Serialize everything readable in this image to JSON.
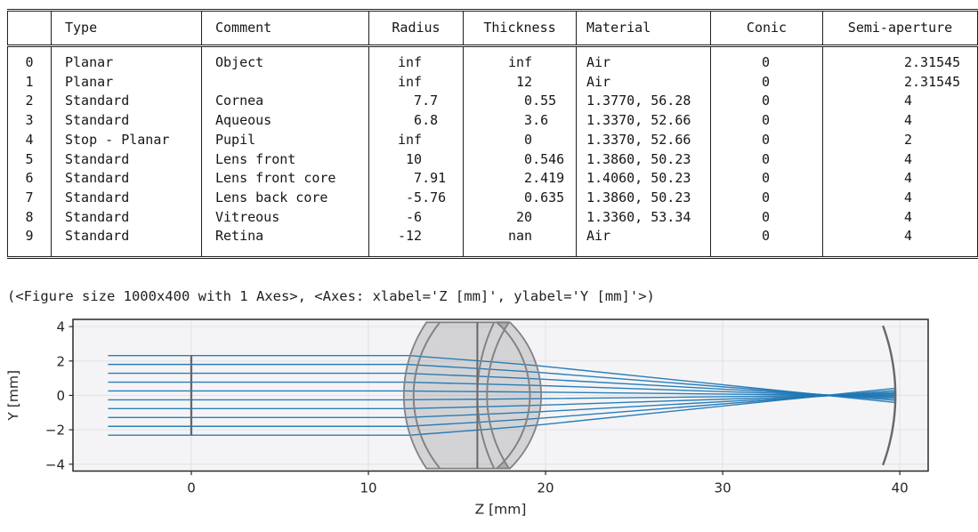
{
  "table": {
    "columns": [
      "",
      "Type",
      "Comment",
      "Radius",
      "Thickness",
      "Material",
      "Conic",
      "Semi-aperture"
    ],
    "rows": [
      [
        "0",
        "Planar",
        "Object",
        "inf",
        "inf",
        "Air",
        "0",
        "2.31545"
      ],
      [
        "1",
        "Planar",
        "",
        "inf",
        " 12",
        "Air",
        "0",
        "2.31545"
      ],
      [
        "2",
        "Standard",
        "Cornea",
        "  7.7",
        "  0.55",
        "1.3770, 56.28",
        "0",
        "4"
      ],
      [
        "3",
        "Standard",
        "Aqueous",
        "  6.8",
        "  3.6",
        "1.3370, 52.66",
        "0",
        "4"
      ],
      [
        "4",
        "Stop - Planar",
        "Pupil",
        "inf",
        "  0",
        "1.3370, 52.66",
        "0",
        "2"
      ],
      [
        "5",
        "Standard",
        "Lens front",
        " 10",
        "  0.546",
        "1.3860, 50.23",
        "0",
        "4"
      ],
      [
        "6",
        "Standard",
        "Lens front core",
        "  7.91",
        "  2.419",
        "1.4060, 50.23",
        "0",
        "4"
      ],
      [
        "7",
        "Standard",
        "Lens back core",
        " -5.76",
        "  0.635",
        "1.3860, 50.23",
        "0",
        "4"
      ],
      [
        "8",
        "Standard",
        "Vitreous",
        " -6",
        " 20",
        "1.3360, 53.34",
        "0",
        "4"
      ],
      [
        "9",
        "Standard",
        "Retina",
        "-12",
        "nan",
        "Air",
        "0",
        "4"
      ]
    ]
  },
  "output_text": "(<Figure size 1000x400 with 1 Axes>, <Axes: xlabel='Z [mm]', ylabel='Y [mm]'>)",
  "chart_data": {
    "type": "line",
    "title": "",
    "xlabel": "Z [mm]",
    "ylabel": "Y [mm]",
    "xlim": [
      -6.68,
      41.6
    ],
    "ylim": [
      -4.4,
      4.42
    ],
    "xticks": {
      "values": [
        0,
        10,
        20,
        30,
        40
      ],
      "labels": [
        "0",
        "10",
        "20",
        "30",
        "40"
      ]
    },
    "yticks": {
      "values": [
        -4,
        -2,
        0,
        2,
        4
      ],
      "labels": [
        "−4",
        "−2",
        "0",
        "2",
        "4"
      ]
    },
    "grid": true,
    "legend": "none",
    "colors": {
      "plot_bg": "#f4f4f6",
      "grid": "#e3e3e7",
      "spine": "#28282a",
      "ray": "#1f77b4",
      "surface_stroke": "#828284",
      "marker_stroke": "#67676a",
      "element_fill": "rgb(148,148,150)"
    },
    "rays": {
      "description": "10 parallel rays traced from object space through the eye model to the retina",
      "start_z": -4.7,
      "n_object": 1.0,
      "heights": [
        -2.3154,
        -1.8009,
        -1.2864,
        -0.7718,
        -0.2573,
        0.2573,
        0.7718,
        1.2864,
        1.8009,
        2.3154
      ]
    },
    "refracting_surfaces": [
      {
        "name": "cornea-front",
        "z": 12,
        "R": 7.7,
        "n_after": 1.377
      },
      {
        "name": "cornea-back",
        "z": 12.55,
        "R": 6.8,
        "n_after": 1.337
      },
      {
        "name": "lens-front",
        "z": 16.15,
        "R": 10,
        "n_after": 1.386
      },
      {
        "name": "lens-front-core",
        "z": 16.696,
        "R": 7.91,
        "n_after": 1.406
      },
      {
        "name": "lens-back-core",
        "z": 19.115,
        "R": -5.76,
        "n_after": 1.386
      },
      {
        "name": "lens-back",
        "z": 19.75,
        "R": -6,
        "n_after": 1.336
      }
    ],
    "elements": [
      {
        "name": "cornea",
        "front": {
          "z": 12,
          "R": 7.7
        },
        "back": {
          "z": 12.55,
          "R": 6.8
        }
      },
      {
        "name": "aqueous",
        "front": {
          "z": 12.55,
          "R": 6.8
        },
        "back": {
          "z": 16.15,
          "R": 10
        }
      },
      {
        "name": "lens-front-shell",
        "front": {
          "z": 16.15,
          "R": 10
        },
        "back": {
          "z": 16.696,
          "R": 7.91
        }
      },
      {
        "name": "lens-core",
        "front": {
          "z": 16.696,
          "R": 7.91
        },
        "back": {
          "z": 19.115,
          "R": -5.76
        }
      },
      {
        "name": "lens-back-shell",
        "front": {
          "z": 19.115,
          "R": -5.76
        },
        "back": {
          "z": 19.75,
          "R": -6
        }
      }
    ],
    "element_aperture": 4.25,
    "object_plane": {
      "z": 0,
      "half_height": 2.31545
    },
    "stop_plane": {
      "z": 16.15,
      "half_height": 4.25
    },
    "retina": {
      "z": 39.75,
      "R": -12,
      "half_height": 4.05
    }
  }
}
